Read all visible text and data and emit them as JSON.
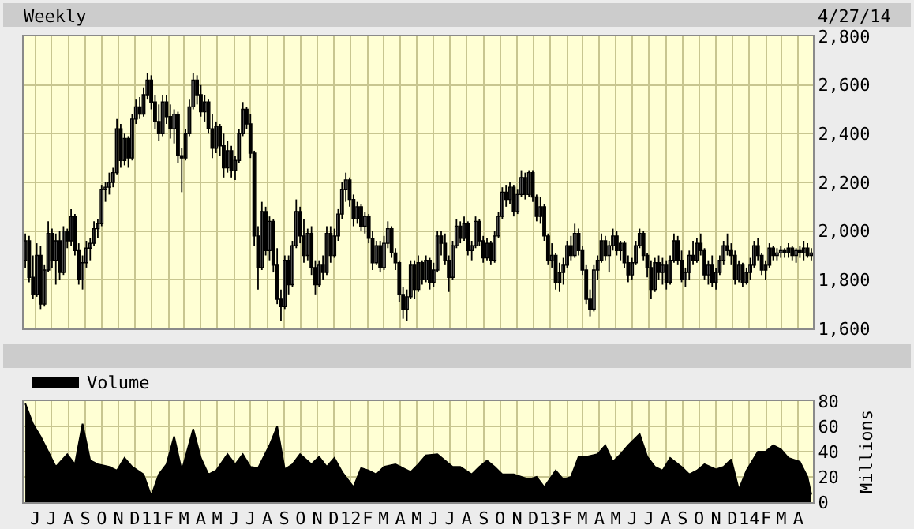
{
  "chart_data": [
    {
      "type": "candlestick",
      "title": "Weekly",
      "annotations": [
        "4/27/14"
      ],
      "color": "#000000",
      "x": [
        "2010-05-14",
        "2010-05-21",
        "2010-05-28",
        "2010-06-04",
        "2010-06-11",
        "2010-06-18",
        "2010-06-25",
        "2010-07-02",
        "2010-07-09",
        "2010-07-16",
        "2010-07-23",
        "2010-07-30",
        "2010-08-06",
        "2010-08-13",
        "2010-08-20",
        "2010-08-27",
        "2010-09-03",
        "2010-09-10",
        "2010-09-17",
        "2010-09-24",
        "2010-10-01",
        "2010-10-08",
        "2010-10-15",
        "2010-10-22",
        "2010-10-29",
        "2010-11-05",
        "2010-11-12",
        "2010-11-19",
        "2010-11-26",
        "2010-12-03",
        "2010-12-10",
        "2010-12-17",
        "2010-12-24",
        "2010-12-31",
        "2011-01-07",
        "2011-01-14",
        "2011-01-21",
        "2011-01-28",
        "2011-02-04",
        "2011-02-11",
        "2011-02-18",
        "2011-02-25",
        "2011-03-04",
        "2011-03-11",
        "2011-03-18",
        "2011-03-25",
        "2011-04-01",
        "2011-04-08",
        "2011-04-15",
        "2011-04-22",
        "2011-04-29",
        "2011-05-06",
        "2011-05-13",
        "2011-05-20",
        "2011-05-27",
        "2011-06-03",
        "2011-06-10",
        "2011-06-17",
        "2011-06-24",
        "2011-07-01",
        "2011-07-08",
        "2011-07-15",
        "2011-07-22",
        "2011-07-29",
        "2011-08-05",
        "2011-08-12",
        "2011-08-19",
        "2011-08-26",
        "2011-09-02",
        "2011-09-09",
        "2011-09-16",
        "2011-09-23",
        "2011-09-30",
        "2011-10-07",
        "2011-10-14",
        "2011-10-21",
        "2011-10-28",
        "2011-11-04",
        "2011-11-11",
        "2011-11-18",
        "2011-11-25",
        "2011-12-02",
        "2011-12-09",
        "2011-12-16",
        "2011-12-23",
        "2011-12-30",
        "2012-01-06",
        "2012-01-13",
        "2012-01-20",
        "2012-01-27",
        "2012-02-03",
        "2012-02-10",
        "2012-02-17",
        "2012-02-24",
        "2012-03-02",
        "2012-03-09",
        "2012-03-16",
        "2012-03-23",
        "2012-03-30",
        "2012-04-06",
        "2012-04-13",
        "2012-04-20",
        "2012-04-27",
        "2012-05-04",
        "2012-05-11",
        "2012-05-18",
        "2012-05-25",
        "2012-06-01",
        "2012-06-08",
        "2012-06-15",
        "2012-06-22",
        "2012-06-29",
        "2012-07-06",
        "2012-07-13",
        "2012-07-20",
        "2012-07-27",
        "2012-08-03",
        "2012-08-10",
        "2012-08-17",
        "2012-08-24",
        "2012-08-31",
        "2012-09-07",
        "2012-09-14",
        "2012-09-21",
        "2012-09-28",
        "2012-10-05",
        "2012-10-12",
        "2012-10-19",
        "2012-10-26",
        "2012-11-02",
        "2012-11-09",
        "2012-11-16",
        "2012-11-23",
        "2012-11-30",
        "2012-12-07",
        "2012-12-14",
        "2012-12-21",
        "2012-12-28",
        "2013-01-04",
        "2013-01-11",
        "2013-01-18",
        "2013-01-25",
        "2013-02-01",
        "2013-02-08",
        "2013-02-15",
        "2013-02-22",
        "2013-03-01",
        "2013-03-08",
        "2013-03-15",
        "2013-03-22",
        "2013-03-29",
        "2013-04-05",
        "2013-04-12",
        "2013-04-19",
        "2013-04-26",
        "2013-05-03",
        "2013-05-10",
        "2013-05-17",
        "2013-05-24",
        "2013-05-31",
        "2013-06-07",
        "2013-06-14",
        "2013-06-21",
        "2013-06-28",
        "2013-07-05",
        "2013-07-12",
        "2013-07-19",
        "2013-07-26",
        "2013-08-02",
        "2013-08-09",
        "2013-08-16",
        "2013-08-23",
        "2013-08-30",
        "2013-09-06",
        "2013-09-13",
        "2013-09-20",
        "2013-09-27",
        "2013-10-04",
        "2013-10-11",
        "2013-10-18",
        "2013-10-25",
        "2013-11-01",
        "2013-11-08",
        "2013-11-15",
        "2013-11-22",
        "2013-11-29",
        "2013-12-06",
        "2013-12-13",
        "2013-12-20",
        "2013-12-27",
        "2014-01-03",
        "2014-01-10",
        "2014-01-17",
        "2014-01-24",
        "2014-01-31",
        "2014-02-07",
        "2014-02-14",
        "2014-02-21",
        "2014-02-28",
        "2014-03-07",
        "2014-03-14",
        "2014-03-21",
        "2014-03-28",
        "2014-04-04",
        "2014-04-11",
        "2014-04-18",
        "2014-04-25"
      ],
      "ohlc": [
        [
          1880,
          1990,
          1850,
          1960
        ],
        [
          1960,
          1980,
          1790,
          1810
        ],
        [
          1810,
          1900,
          1720,
          1740
        ],
        [
          1740,
          1950,
          1730,
          1900
        ],
        [
          1900,
          1940,
          1680,
          1700
        ],
        [
          1700,
          1860,
          1690,
          1840
        ],
        [
          1840,
          2040,
          1830,
          1990
        ],
        [
          1990,
          2010,
          1850,
          1880
        ],
        [
          1880,
          1990,
          1780,
          1960
        ],
        [
          1960,
          2000,
          1800,
          1830
        ],
        [
          1830,
          2020,
          1820,
          2000
        ],
        [
          2000,
          2010,
          1930,
          1960
        ],
        [
          1960,
          2090,
          1940,
          2060
        ],
        [
          2060,
          2070,
          1900,
          1920
        ],
        [
          1920,
          1950,
          1780,
          1800
        ],
        [
          1800,
          1900,
          1760,
          1870
        ],
        [
          1870,
          1960,
          1850,
          1930
        ],
        [
          1930,
          1970,
          1880,
          1950
        ],
        [
          1950,
          2040,
          1940,
          2010
        ],
        [
          2010,
          2050,
          1970,
          2030
        ],
        [
          2030,
          2190,
          2020,
          2170
        ],
        [
          2170,
          2200,
          2120,
          2180
        ],
        [
          2180,
          2240,
          2150,
          2200
        ],
        [
          2200,
          2260,
          2180,
          2240
        ],
        [
          2240,
          2460,
          2230,
          2420
        ],
        [
          2420,
          2440,
          2260,
          2290
        ],
        [
          2290,
          2400,
          2270,
          2380
        ],
        [
          2380,
          2390,
          2260,
          2300
        ],
        [
          2300,
          2480,
          2290,
          2460
        ],
        [
          2460,
          2540,
          2440,
          2510
        ],
        [
          2510,
          2550,
          2460,
          2480
        ],
        [
          2480,
          2590,
          2470,
          2560
        ],
        [
          2560,
          2650,
          2540,
          2620
        ],
        [
          2620,
          2640,
          2500,
          2530
        ],
        [
          2530,
          2560,
          2420,
          2450
        ],
        [
          2450,
          2520,
          2370,
          2400
        ],
        [
          2400,
          2560,
          2390,
          2530
        ],
        [
          2530,
          2560,
          2440,
          2470
        ],
        [
          2470,
          2520,
          2380,
          2420
        ],
        [
          2420,
          2500,
          2360,
          2480
        ],
        [
          2480,
          2490,
          2280,
          2310
        ],
        [
          2310,
          2340,
          2160,
          2300
        ],
        [
          2300,
          2420,
          2290,
          2400
        ],
        [
          2400,
          2540,
          2390,
          2510
        ],
        [
          2510,
          2650,
          2500,
          2620
        ],
        [
          2620,
          2640,
          2520,
          2560
        ],
        [
          2560,
          2600,
          2470,
          2490
        ],
        [
          2490,
          2560,
          2450,
          2530
        ],
        [
          2530,
          2540,
          2400,
          2420
        ],
        [
          2420,
          2480,
          2300,
          2340
        ],
        [
          2340,
          2450,
          2320,
          2430
        ],
        [
          2430,
          2440,
          2310,
          2350
        ],
        [
          2350,
          2400,
          2220,
          2260
        ],
        [
          2260,
          2370,
          2240,
          2330
        ],
        [
          2330,
          2350,
          2220,
          2250
        ],
        [
          2250,
          2310,
          2210,
          2290
        ],
        [
          2290,
          2420,
          2280,
          2400
        ],
        [
          2400,
          2530,
          2390,
          2500
        ],
        [
          2500,
          2510,
          2420,
          2440
        ],
        [
          2440,
          2480,
          2300,
          2320
        ],
        [
          2320,
          2330,
          1940,
          1980
        ],
        [
          1980,
          2020,
          1760,
          1850
        ],
        [
          1850,
          2120,
          1840,
          2080
        ],
        [
          2080,
          2100,
          1900,
          1920
        ],
        [
          1920,
          2060,
          1880,
          2040
        ],
        [
          2040,
          2050,
          1830,
          1860
        ],
        [
          1860,
          1930,
          1700,
          1720
        ],
        [
          1720,
          1760,
          1630,
          1690
        ],
        [
          1690,
          1900,
          1680,
          1880
        ],
        [
          1880,
          1900,
          1740,
          1780
        ],
        [
          1780,
          1960,
          1770,
          1940
        ],
        [
          1940,
          2130,
          1930,
          2080
        ],
        [
          2080,
          2100,
          1950,
          1980
        ],
        [
          1980,
          2050,
          1870,
          1900
        ],
        [
          1900,
          2010,
          1880,
          1990
        ],
        [
          1990,
          2020,
          1820,
          1850
        ],
        [
          1850,
          1880,
          1740,
          1780
        ],
        [
          1780,
          1880,
          1770,
          1860
        ],
        [
          1860,
          1900,
          1800,
          1830
        ],
        [
          1830,
          2020,
          1820,
          1990
        ],
        [
          1990,
          2020,
          1870,
          1900
        ],
        [
          1900,
          2010,
          1890,
          1980
        ],
        [
          1980,
          2090,
          1960,
          2070
        ],
        [
          2070,
          2200,
          2050,
          2170
        ],
        [
          2170,
          2240,
          2120,
          2210
        ],
        [
          2210,
          2220,
          2100,
          2130
        ],
        [
          2130,
          2150,
          2020,
          2050
        ],
        [
          2050,
          2120,
          2030,
          2100
        ],
        [
          2100,
          2110,
          2000,
          2020
        ],
        [
          2020,
          2080,
          1990,
          2060
        ],
        [
          2060,
          2070,
          1950,
          1970
        ],
        [
          1970,
          2000,
          1840,
          1870
        ],
        [
          1870,
          1960,
          1860,
          1940
        ],
        [
          1940,
          1960,
          1830,
          1850
        ],
        [
          1850,
          1980,
          1840,
          1950
        ],
        [
          1950,
          2040,
          1930,
          2010
        ],
        [
          2010,
          2020,
          1890,
          1910
        ],
        [
          1910,
          1930,
          1840,
          1870
        ],
        [
          1870,
          1880,
          1710,
          1740
        ],
        [
          1740,
          1770,
          1640,
          1680
        ],
        [
          1680,
          1760,
          1630,
          1730
        ],
        [
          1730,
          1880,
          1720,
          1860
        ],
        [
          1860,
          1880,
          1720,
          1760
        ],
        [
          1760,
          1900,
          1750,
          1870
        ],
        [
          1870,
          1880,
          1780,
          1800
        ],
        [
          1800,
          1900,
          1790,
          1880
        ],
        [
          1880,
          1890,
          1760,
          1790
        ],
        [
          1790,
          1870,
          1770,
          1840
        ],
        [
          1840,
          2000,
          1830,
          1980
        ],
        [
          1980,
          2000,
          1900,
          1950
        ],
        [
          1950,
          1990,
          1860,
          1880
        ],
        [
          1880,
          1900,
          1750,
          1810
        ],
        [
          1810,
          1960,
          1800,
          1940
        ],
        [
          1940,
          2050,
          1930,
          2020
        ],
        [
          2020,
          2040,
          1950,
          1970
        ],
        [
          1970,
          2060,
          1960,
          2030
        ],
        [
          2030,
          2040,
          1900,
          1920
        ],
        [
          1920,
          1960,
          1880,
          1940
        ],
        [
          1940,
          2060,
          1930,
          2040
        ],
        [
          2040,
          2050,
          1940,
          1960
        ],
        [
          1960,
          1980,
          1870,
          1890
        ],
        [
          1890,
          1970,
          1880,
          1950
        ],
        [
          1950,
          1960,
          1860,
          1880
        ],
        [
          1880,
          2000,
          1870,
          1980
        ],
        [
          1980,
          2080,
          1970,
          2060
        ],
        [
          2060,
          2180,
          2050,
          2160
        ],
        [
          2160,
          2190,
          2100,
          2130
        ],
        [
          2130,
          2200,
          2110,
          2180
        ],
        [
          2180,
          2190,
          2060,
          2080
        ],
        [
          2080,
          2170,
          2070,
          2150
        ],
        [
          2150,
          2250,
          2140,
          2220
        ],
        [
          2220,
          2240,
          2130,
          2150
        ],
        [
          2150,
          2250,
          2140,
          2240
        ],
        [
          2240,
          2250,
          2120,
          2140
        ],
        [
          2140,
          2150,
          2040,
          2060
        ],
        [
          2060,
          2140,
          2030,
          2100
        ],
        [
          2100,
          2110,
          1960,
          1980
        ],
        [
          1980,
          1990,
          1860,
          1880
        ],
        [
          1880,
          1950,
          1850,
          1900
        ],
        [
          1900,
          1910,
          1760,
          1790
        ],
        [
          1790,
          1870,
          1750,
          1830
        ],
        [
          1830,
          1890,
          1780,
          1860
        ],
        [
          1860,
          1960,
          1850,
          1940
        ],
        [
          1940,
          1980,
          1880,
          1900
        ],
        [
          1900,
          2030,
          1890,
          1990
        ],
        [
          1990,
          2010,
          1900,
          1920
        ],
        [
          1920,
          1940,
          1820,
          1840
        ],
        [
          1840,
          1860,
          1700,
          1720
        ],
        [
          1720,
          1760,
          1650,
          1680
        ],
        [
          1680,
          1860,
          1670,
          1840
        ],
        [
          1840,
          1900,
          1800,
          1880
        ],
        [
          1880,
          1990,
          1870,
          1960
        ],
        [
          1960,
          1980,
          1880,
          1900
        ],
        [
          1900,
          1960,
          1830,
          1940
        ],
        [
          1940,
          2010,
          1920,
          1980
        ],
        [
          1980,
          2000,
          1900,
          1920
        ],
        [
          1920,
          1960,
          1880,
          1950
        ],
        [
          1950,
          1960,
          1850,
          1870
        ],
        [
          1870,
          1900,
          1790,
          1820
        ],
        [
          1820,
          1890,
          1800,
          1870
        ],
        [
          1870,
          1960,
          1860,
          1940
        ],
        [
          1940,
          2010,
          1930,
          1990
        ],
        [
          1990,
          2000,
          1880,
          1900
        ],
        [
          1900,
          1910,
          1810,
          1850
        ],
        [
          1850,
          1880,
          1720,
          1760
        ],
        [
          1760,
          1890,
          1750,
          1870
        ],
        [
          1870,
          1900,
          1800,
          1830
        ],
        [
          1830,
          1890,
          1780,
          1860
        ],
        [
          1860,
          1880,
          1760,
          1790
        ],
        [
          1790,
          1900,
          1780,
          1880
        ],
        [
          1880,
          1990,
          1870,
          1960
        ],
        [
          1960,
          1980,
          1860,
          1880
        ],
        [
          1880,
          1920,
          1790,
          1800
        ],
        [
          1800,
          1850,
          1770,
          1830
        ],
        [
          1830,
          1920,
          1800,
          1900
        ],
        [
          1900,
          1960,
          1860,
          1880
        ],
        [
          1880,
          1970,
          1870,
          1950
        ],
        [
          1950,
          1990,
          1900,
          1920
        ],
        [
          1920,
          1930,
          1800,
          1820
        ],
        [
          1820,
          1880,
          1780,
          1860
        ],
        [
          1860,
          1900,
          1770,
          1790
        ],
        [
          1790,
          1850,
          1760,
          1830
        ],
        [
          1830,
          1900,
          1820,
          1880
        ],
        [
          1880,
          1960,
          1860,
          1940
        ],
        [
          1940,
          1990,
          1900,
          1920
        ],
        [
          1920,
          1950,
          1860,
          1900
        ],
        [
          1900,
          1920,
          1780,
          1800
        ],
        [
          1800,
          1880,
          1790,
          1860
        ],
        [
          1860,
          1870,
          1770,
          1790
        ],
        [
          1790,
          1850,
          1780,
          1830
        ],
        [
          1830,
          1890,
          1800,
          1860
        ],
        [
          1860,
          1960,
          1850,
          1940
        ],
        [
          1940,
          1970,
          1880,
          1900
        ],
        [
          1900,
          1910,
          1820,
          1840
        ],
        [
          1840,
          1880,
          1800,
          1860
        ],
        [
          1860,
          1950,
          1850,
          1930
        ],
        [
          1930,
          1940,
          1880,
          1900
        ],
        [
          1900,
          1930,
          1880,
          1910
        ],
        [
          1910,
          1940,
          1890,
          1920
        ],
        [
          1920,
          1930,
          1890,
          1910
        ],
        [
          1910,
          1950,
          1890,
          1930
        ],
        [
          1930,
          1940,
          1880,
          1900
        ],
        [
          1900,
          1930,
          1870,
          1920
        ],
        [
          1920,
          1940,
          1890,
          1910
        ],
        [
          1910,
          1960,
          1880,
          1930
        ],
        [
          1930,
          1950,
          1890,
          1900
        ],
        [
          1900,
          1930,
          1880,
          1910
        ]
      ],
      "xlim": [
        "2010-05-11",
        "2014-04-28"
      ],
      "xticks": [
        {
          "value": "2010-06-01",
          "label": null
        },
        {
          "value": "2010-07-01",
          "label": null
        },
        {
          "value": "2010-08-01",
          "label": null
        },
        {
          "value": "2010-09-01",
          "label": null
        },
        {
          "value": "2010-10-01",
          "label": null
        },
        {
          "value": "2010-11-01",
          "label": null
        },
        {
          "value": "2010-12-01",
          "label": null
        },
        {
          "value": "2011-01-01",
          "label": null
        },
        {
          "value": "2011-02-01",
          "label": null
        },
        {
          "value": "2011-03-01",
          "label": null
        },
        {
          "value": "2011-04-01",
          "label": null
        },
        {
          "value": "2011-05-01",
          "label": null
        },
        {
          "value": "2011-06-01",
          "label": null
        },
        {
          "value": "2011-07-01",
          "label": null
        },
        {
          "value": "2011-08-01",
          "label": null
        },
        {
          "value": "2011-09-01",
          "label": null
        },
        {
          "value": "2011-10-01",
          "label": null
        },
        {
          "value": "2011-11-01",
          "label": null
        },
        {
          "value": "2011-12-01",
          "label": null
        },
        {
          "value": "2012-01-01",
          "label": null
        },
        {
          "value": "2012-02-01",
          "label": null
        },
        {
          "value": "2012-03-01",
          "label": null
        },
        {
          "value": "2012-04-01",
          "label": null
        },
        {
          "value": "2012-05-01",
          "label": null
        },
        {
          "value": "2012-06-01",
          "label": null
        },
        {
          "value": "2012-07-01",
          "label": null
        },
        {
          "value": "2012-08-01",
          "label": null
        },
        {
          "value": "2012-09-01",
          "label": null
        },
        {
          "value": "2012-10-01",
          "label": null
        },
        {
          "value": "2012-11-01",
          "label": null
        },
        {
          "value": "2012-12-01",
          "label": null
        },
        {
          "value": "2013-01-01",
          "label": null
        },
        {
          "value": "2013-02-01",
          "label": null
        },
        {
          "value": "2013-03-01",
          "label": null
        },
        {
          "value": "2013-04-01",
          "label": null
        },
        {
          "value": "2013-05-01",
          "label": null
        },
        {
          "value": "2013-06-01",
          "label": null
        },
        {
          "value": "2013-07-01",
          "label": null
        },
        {
          "value": "2013-08-01",
          "label": null
        },
        {
          "value": "2013-09-01",
          "label": null
        },
        {
          "value": "2013-10-01",
          "label": null
        },
        {
          "value": "2013-11-01",
          "label": null
        },
        {
          "value": "2013-12-01",
          "label": null
        },
        {
          "value": "2014-01-01",
          "label": null
        },
        {
          "value": "2014-02-01",
          "label": null
        },
        {
          "value": "2014-03-01",
          "label": null
        },
        {
          "value": "2014-04-01",
          "label": null
        }
      ],
      "ylim": [
        1600,
        2800
      ],
      "yticks": [
        {
          "value": 1600,
          "label": "1,600"
        },
        {
          "value": 1800,
          "label": "1,800"
        },
        {
          "value": 2000,
          "label": "2,000"
        },
        {
          "value": 2200,
          "label": "2,200"
        },
        {
          "value": 2400,
          "label": "2,400"
        },
        {
          "value": 2600,
          "label": "2,600"
        },
        {
          "value": 2800,
          "label": "2,800"
        }
      ],
      "grid": true,
      "tick_labels": "y"
    },
    {
      "type": "area",
      "ylabel": "Millions",
      "legend": "top left",
      "grid": true,
      "x": [
        "2010-05-14",
        "2010-05-28",
        "2010-06-11",
        "2010-06-25",
        "2010-07-09",
        "2010-07-30",
        "2010-08-13",
        "2010-08-27",
        "2010-09-10",
        "2010-09-24",
        "2010-10-15",
        "2010-10-29",
        "2010-11-12",
        "2010-11-26",
        "2010-12-17",
        "2010-12-31",
        "2011-01-14",
        "2011-01-28",
        "2011-02-11",
        "2011-02-25",
        "2011-03-18",
        "2011-04-01",
        "2011-04-15",
        "2011-04-29",
        "2011-05-20",
        "2011-06-03",
        "2011-06-17",
        "2011-07-01",
        "2011-07-15",
        "2011-08-05",
        "2011-08-19",
        "2011-09-02",
        "2011-09-16",
        "2011-09-30",
        "2011-10-21",
        "2011-11-04",
        "2011-11-18",
        "2011-12-02",
        "2011-12-16",
        "2012-01-06",
        "2012-01-20",
        "2012-02-03",
        "2012-02-17",
        "2012-03-02",
        "2012-03-23",
        "2012-04-06",
        "2012-04-20",
        "2012-05-04",
        "2012-05-18",
        "2012-06-08",
        "2012-06-22",
        "2012-07-06",
        "2012-07-20",
        "2012-08-10",
        "2012-08-24",
        "2012-09-07",
        "2012-09-21",
        "2012-10-05",
        "2012-10-26",
        "2012-11-09",
        "2012-11-23",
        "2012-12-07",
        "2012-12-21",
        "2013-01-11",
        "2013-01-25",
        "2013-02-08",
        "2013-02-22",
        "2013-03-08",
        "2013-03-29",
        "2013-04-12",
        "2013-04-26",
        "2013-05-10",
        "2013-05-24",
        "2013-06-14",
        "2013-06-28",
        "2013-07-12",
        "2013-07-26",
        "2013-08-09",
        "2013-08-30",
        "2013-09-13",
        "2013-09-27",
        "2013-10-11",
        "2013-11-01",
        "2013-11-15",
        "2013-11-29",
        "2013-12-13",
        "2013-12-27",
        "2014-01-17",
        "2014-01-31",
        "2014-02-14",
        "2014-02-28",
        "2014-03-14",
        "2014-04-04",
        "2014-04-18",
        "2014-04-25"
      ],
      "series": [
        {
          "name": "Volume",
          "color": "#000000",
          "values": [
            78,
            62,
            52,
            40,
            28,
            38,
            30,
            62,
            33,
            30,
            28,
            25,
            35,
            28,
            22,
            5,
            22,
            30,
            52,
            25,
            58,
            35,
            22,
            25,
            38,
            30,
            38,
            28,
            27,
            45,
            60,
            26,
            30,
            38,
            30,
            36,
            28,
            35,
            24,
            12,
            27,
            25,
            22,
            28,
            30,
            27,
            24,
            30,
            37,
            38,
            33,
            28,
            28,
            22,
            28,
            33,
            28,
            22,
            22,
            20,
            18,
            20,
            12,
            25,
            18,
            20,
            36,
            36,
            38,
            45,
            32,
            38,
            45,
            54,
            36,
            28,
            25,
            35,
            28,
            22,
            25,
            30,
            26,
            28,
            34,
            10,
            25,
            40,
            40,
            45,
            42,
            35,
            32,
            20,
            6
          ]
        }
      ],
      "xlim": [
        "2010-05-11",
        "2014-04-28"
      ],
      "xticks": [
        {
          "value": "2010-06-01",
          "label": "J"
        },
        {
          "value": "2010-07-01",
          "label": "J"
        },
        {
          "value": "2010-08-01",
          "label": "A"
        },
        {
          "value": "2010-09-01",
          "label": "S"
        },
        {
          "value": "2010-10-01",
          "label": "O"
        },
        {
          "value": "2010-11-01",
          "label": "N"
        },
        {
          "value": "2010-12-01",
          "label": "D"
        },
        {
          "value": "2011-01-01",
          "label": "11"
        },
        {
          "value": "2011-02-01",
          "label": "F"
        },
        {
          "value": "2011-03-01",
          "label": "M"
        },
        {
          "value": "2011-04-01",
          "label": "A"
        },
        {
          "value": "2011-05-01",
          "label": "M"
        },
        {
          "value": "2011-06-01",
          "label": "J"
        },
        {
          "value": "2011-07-01",
          "label": "J"
        },
        {
          "value": "2011-08-01",
          "label": "A"
        },
        {
          "value": "2011-09-01",
          "label": "S"
        },
        {
          "value": "2011-10-01",
          "label": "O"
        },
        {
          "value": "2011-11-01",
          "label": "N"
        },
        {
          "value": "2011-12-01",
          "label": "D"
        },
        {
          "value": "2012-01-01",
          "label": "12"
        },
        {
          "value": "2012-02-01",
          "label": "F"
        },
        {
          "value": "2012-03-01",
          "label": "M"
        },
        {
          "value": "2012-04-01",
          "label": "A"
        },
        {
          "value": "2012-05-01",
          "label": "M"
        },
        {
          "value": "2012-06-01",
          "label": "J"
        },
        {
          "value": "2012-07-01",
          "label": "J"
        },
        {
          "value": "2012-08-01",
          "label": "A"
        },
        {
          "value": "2012-09-01",
          "label": "S"
        },
        {
          "value": "2012-10-01",
          "label": "O"
        },
        {
          "value": "2012-11-01",
          "label": "N"
        },
        {
          "value": "2012-12-01",
          "label": "D"
        },
        {
          "value": "2013-01-01",
          "label": "13"
        },
        {
          "value": "2013-02-01",
          "label": "F"
        },
        {
          "value": "2013-03-01",
          "label": "M"
        },
        {
          "value": "2013-04-01",
          "label": "A"
        },
        {
          "value": "2013-05-01",
          "label": "M"
        },
        {
          "value": "2013-06-01",
          "label": "J"
        },
        {
          "value": "2013-07-01",
          "label": "J"
        },
        {
          "value": "2013-08-01",
          "label": "A"
        },
        {
          "value": "2013-09-01",
          "label": "S"
        },
        {
          "value": "2013-10-01",
          "label": "O"
        },
        {
          "value": "2013-11-01",
          "label": "N"
        },
        {
          "value": "2013-12-01",
          "label": "D"
        },
        {
          "value": "2014-01-01",
          "label": "14"
        },
        {
          "value": "2014-02-01",
          "label": "F"
        },
        {
          "value": "2014-03-01",
          "label": "M"
        },
        {
          "value": "2014-04-01",
          "label": "A"
        }
      ],
      "ylim": [
        0,
        80
      ],
      "yticks": [
        0,
        20,
        40,
        60,
        80
      ]
    }
  ]
}
